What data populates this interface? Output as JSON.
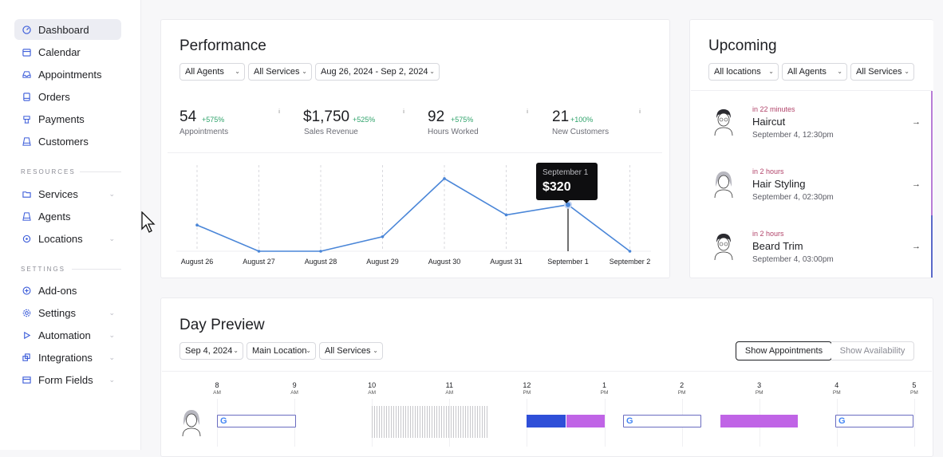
{
  "sidebar": {
    "items": [
      {
        "label": "Dashboard",
        "icon": "dashboard-icon"
      },
      {
        "label": "Calendar",
        "icon": "calendar-icon"
      },
      {
        "label": "Appointments",
        "icon": "inbox-icon"
      },
      {
        "label": "Orders",
        "icon": "orders-icon"
      },
      {
        "label": "Payments",
        "icon": "payments-icon"
      },
      {
        "label": "Customers",
        "icon": "customers-icon"
      }
    ],
    "resources_label": "RESOURCES",
    "resources": [
      {
        "label": "Services",
        "icon": "folder-icon"
      },
      {
        "label": "Agents",
        "icon": "agent-icon"
      },
      {
        "label": "Locations",
        "icon": "location-pin-icon"
      }
    ],
    "settings_label": "SETTINGS",
    "settings": [
      {
        "label": "Add-ons",
        "icon": "plus-circle-icon"
      },
      {
        "label": "Settings",
        "icon": "gear-icon"
      },
      {
        "label": "Automation",
        "icon": "play-icon"
      },
      {
        "label": "Integrations",
        "icon": "integrations-icon"
      },
      {
        "label": "Form Fields",
        "icon": "form-icon"
      }
    ]
  },
  "performance": {
    "title": "Performance",
    "filters": {
      "agents": "All Agents",
      "services": "All Services",
      "range": "Aug 26, 2024 - Sep 2, 2024"
    },
    "stats": [
      {
        "value": "54",
        "delta": "+575%",
        "label": "Appointments"
      },
      {
        "value": "$1,750",
        "delta": "+525%",
        "label": "Sales Revenue"
      },
      {
        "value": "92",
        "delta": "+575%",
        "label": "Hours Worked"
      },
      {
        "value": "21",
        "delta": "+100%",
        "label": "New Customers"
      }
    ],
    "info_glyph": "i",
    "tooltip": {
      "date": "September 1",
      "value": "$320"
    }
  },
  "chart_data": {
    "type": "line",
    "categories": [
      "August 26",
      "August 27",
      "August 28",
      "August 29",
      "August 30",
      "August 31",
      "September 1",
      "September 2"
    ],
    "values": [
      180,
      0,
      0,
      100,
      500,
      250,
      320,
      0
    ],
    "highlight_index": 6,
    "line_color": "#4a86d8"
  },
  "upcoming": {
    "title": "Upcoming",
    "filters": {
      "locations": "All locations",
      "agents": "All Agents",
      "services": "All Services"
    },
    "items": [
      {
        "when": "in 22 minutes",
        "name": "Haircut",
        "date": "September 4, 12:30pm",
        "accent": "#b77cd6"
      },
      {
        "when": "in 2 hours",
        "name": "Hair Styling",
        "date": "September 4, 02:30pm",
        "accent": "#b77cd6"
      },
      {
        "when": "in 2 hours",
        "name": "Beard Trim",
        "date": "September 4, 03:00pm",
        "accent": "#5a68c8"
      }
    ],
    "arrow": "→"
  },
  "day_preview": {
    "title": "Day Preview",
    "filters": {
      "date": "Sep 4, 2024",
      "location": "Main Location",
      "services": "All Services"
    },
    "show_appointments": "Show Appointments",
    "show_availability": "Show Availability",
    "hours": [
      {
        "h": "8",
        "p": "AM"
      },
      {
        "h": "9",
        "p": "AM"
      },
      {
        "h": "10",
        "p": "AM"
      },
      {
        "h": "11",
        "p": "AM"
      },
      {
        "h": "12",
        "p": "PM"
      },
      {
        "h": "1",
        "p": "PM"
      },
      {
        "h": "2",
        "p": "PM"
      },
      {
        "h": "3",
        "p": "PM"
      },
      {
        "h": "4",
        "p": "PM"
      },
      {
        "h": "5",
        "p": "PM"
      }
    ],
    "google_glyph": "G",
    "colors": {
      "blue_block": "#2f4fd8",
      "purple_block": "#c064e6",
      "blocked": "#c8c8cc"
    }
  }
}
